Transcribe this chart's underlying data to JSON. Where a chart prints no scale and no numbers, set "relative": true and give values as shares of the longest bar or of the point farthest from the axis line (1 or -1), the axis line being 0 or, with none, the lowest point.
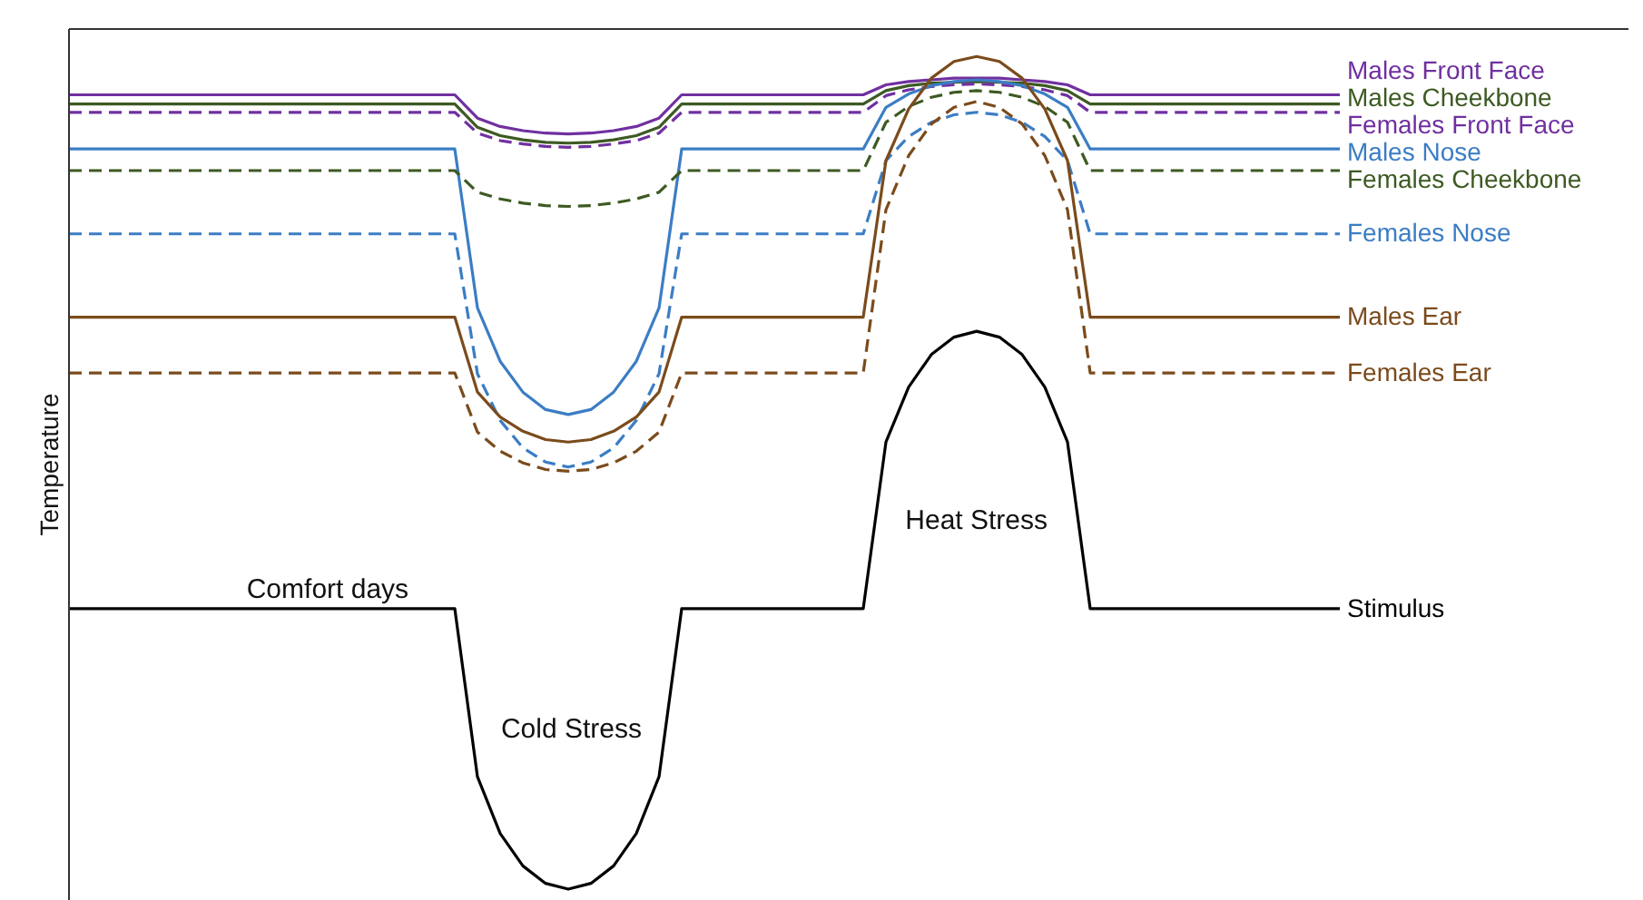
{
  "chart_data": {
    "type": "line",
    "relative": true,
    "ylabel": "Temperature",
    "categories": [
      null,
      null,
      null,
      null,
      null,
      null,
      null,
      null,
      null,
      null,
      null,
      null,
      null,
      null,
      null,
      null,
      null,
      null,
      null,
      null,
      null,
      null,
      null,
      null,
      null,
      null,
      null,
      null,
      null,
      null,
      null,
      null,
      null,
      null,
      null,
      null,
      null,
      null,
      null,
      null,
      null,
      null,
      null,
      null,
      null,
      null,
      null,
      null,
      null,
      null,
      null,
      null,
      null,
      null,
      null,
      null,
      null
    ],
    "annotations": [
      "Comfort days",
      "Cold Stress",
      "Heat Stress"
    ],
    "series": [
      {
        "name": "Males Front Face",
        "color": "#7030a0",
        "line_style": "solid",
        "values": [
          0.954,
          0.954,
          0.954,
          0.954,
          0.954,
          0.954,
          0.954,
          0.954,
          0.954,
          0.954,
          0.954,
          0.954,
          0.954,
          0.954,
          0.954,
          0.954,
          0.954,
          0.954,
          0.926,
          0.916,
          0.911,
          0.908,
          0.907,
          0.908,
          0.911,
          0.916,
          0.926,
          0.954,
          0.954,
          0.954,
          0.954,
          0.954,
          0.954,
          0.954,
          0.954,
          0.954,
          0.966,
          0.97,
          0.972,
          0.974,
          0.974,
          0.974,
          0.972,
          0.97,
          0.966,
          0.954,
          0.954,
          0.954,
          0.954,
          0.954,
          0.954,
          0.954,
          0.954,
          0.954,
          0.954,
          0.954,
          0.954
        ]
      },
      {
        "name": "Males Cheekbone",
        "color": "#3d5a22",
        "line_style": "solid",
        "values": [
          0.943,
          0.943,
          0.943,
          0.943,
          0.943,
          0.943,
          0.943,
          0.943,
          0.943,
          0.943,
          0.943,
          0.943,
          0.943,
          0.943,
          0.943,
          0.943,
          0.943,
          0.943,
          0.915,
          0.905,
          0.9,
          0.897,
          0.896,
          0.897,
          0.9,
          0.905,
          0.915,
          0.943,
          0.943,
          0.943,
          0.943,
          0.943,
          0.943,
          0.943,
          0.943,
          0.943,
          0.959,
          0.965,
          0.968,
          0.969,
          0.97,
          0.969,
          0.968,
          0.965,
          0.959,
          0.943,
          0.943,
          0.943,
          0.943,
          0.943,
          0.943,
          0.943,
          0.943,
          0.943,
          0.943,
          0.943,
          0.943
        ]
      },
      {
        "name": "Females Front Face",
        "color": "#7030a0",
        "line_style": "dashed",
        "values": [
          0.933,
          0.933,
          0.933,
          0.933,
          0.933,
          0.933,
          0.933,
          0.933,
          0.933,
          0.933,
          0.933,
          0.933,
          0.933,
          0.933,
          0.933,
          0.933,
          0.933,
          0.933,
          0.908,
          0.899,
          0.895,
          0.892,
          0.891,
          0.892,
          0.895,
          0.899,
          0.908,
          0.933,
          0.933,
          0.933,
          0.933,
          0.933,
          0.933,
          0.933,
          0.933,
          0.933,
          0.953,
          0.96,
          0.964,
          0.966,
          0.967,
          0.966,
          0.964,
          0.96,
          0.953,
          0.933,
          0.933,
          0.933,
          0.933,
          0.933,
          0.933,
          0.933,
          0.933,
          0.933,
          0.933,
          0.933,
          0.933
        ]
      },
      {
        "name": "Males Nose",
        "color": "#3b7dc4",
        "line_style": "solid",
        "values": [
          0.889,
          0.889,
          0.889,
          0.889,
          0.889,
          0.889,
          0.889,
          0.889,
          0.889,
          0.889,
          0.889,
          0.889,
          0.889,
          0.889,
          0.889,
          0.889,
          0.889,
          0.889,
          0.698,
          0.634,
          0.597,
          0.576,
          0.57,
          0.576,
          0.597,
          0.634,
          0.698,
          0.889,
          0.889,
          0.889,
          0.889,
          0.889,
          0.889,
          0.889,
          0.889,
          0.889,
          0.939,
          0.955,
          0.965,
          0.97,
          0.972,
          0.97,
          0.965,
          0.955,
          0.939,
          0.889,
          0.889,
          0.889,
          0.889,
          0.889,
          0.889,
          0.889,
          0.889,
          0.889,
          0.889,
          0.889,
          0.889
        ]
      },
      {
        "name": "Females Cheekbone",
        "color": "#3d5a22",
        "line_style": "dashed",
        "values": [
          0.863,
          0.863,
          0.863,
          0.863,
          0.863,
          0.863,
          0.863,
          0.863,
          0.863,
          0.863,
          0.863,
          0.863,
          0.863,
          0.863,
          0.863,
          0.863,
          0.863,
          0.863,
          0.837,
          0.829,
          0.824,
          0.821,
          0.82,
          0.821,
          0.824,
          0.829,
          0.837,
          0.863,
          0.863,
          0.863,
          0.863,
          0.863,
          0.863,
          0.863,
          0.863,
          0.863,
          0.921,
          0.94,
          0.951,
          0.957,
          0.959,
          0.957,
          0.951,
          0.94,
          0.921,
          0.863,
          0.863,
          0.863,
          0.863,
          0.863,
          0.863,
          0.863,
          0.863,
          0.863,
          0.863,
          0.863,
          0.863
        ]
      },
      {
        "name": "Females Nose",
        "color": "#3b7dc4",
        "line_style": "dashed",
        "values": [
          0.787,
          0.787,
          0.787,
          0.787,
          0.787,
          0.787,
          0.787,
          0.787,
          0.787,
          0.787,
          0.787,
          0.787,
          0.787,
          0.787,
          0.787,
          0.787,
          0.787,
          0.787,
          0.619,
          0.563,
          0.53,
          0.513,
          0.507,
          0.513,
          0.53,
          0.563,
          0.619,
          0.787,
          0.787,
          0.787,
          0.787,
          0.787,
          0.787,
          0.787,
          0.787,
          0.787,
          0.875,
          0.904,
          0.921,
          0.93,
          0.933,
          0.93,
          0.921,
          0.904,
          0.875,
          0.787,
          0.787,
          0.787,
          0.787,
          0.787,
          0.787,
          0.787,
          0.787,
          0.787,
          0.787,
          0.787,
          0.787
        ]
      },
      {
        "name": "Males Ear",
        "color": "#7b4b1c",
        "line_style": "solid",
        "values": [
          0.687,
          0.687,
          0.687,
          0.687,
          0.687,
          0.687,
          0.687,
          0.687,
          0.687,
          0.687,
          0.687,
          0.687,
          0.687,
          0.687,
          0.687,
          0.687,
          0.687,
          0.687,
          0.597,
          0.567,
          0.55,
          0.54,
          0.537,
          0.54,
          0.55,
          0.567,
          0.597,
          0.687,
          0.687,
          0.687,
          0.687,
          0.687,
          0.687,
          0.687,
          0.687,
          0.687,
          0.875,
          0.937,
          0.974,
          0.994,
          1,
          0.994,
          0.974,
          0.937,
          0.875,
          0.687,
          0.687,
          0.687,
          0.687,
          0.687,
          0.687,
          0.687,
          0.687,
          0.687,
          0.687,
          0.687,
          0.687
        ]
      },
      {
        "name": "Females Ear",
        "color": "#7b4b1c",
        "line_style": "dashed",
        "values": [
          0.62,
          0.62,
          0.62,
          0.62,
          0.62,
          0.62,
          0.62,
          0.62,
          0.62,
          0.62,
          0.62,
          0.62,
          0.62,
          0.62,
          0.62,
          0.62,
          0.62,
          0.62,
          0.549,
          0.526,
          0.512,
          0.504,
          0.502,
          0.504,
          0.512,
          0.526,
          0.549,
          0.62,
          0.62,
          0.62,
          0.62,
          0.62,
          0.62,
          0.62,
          0.62,
          0.62,
          0.816,
          0.881,
          0.919,
          0.939,
          0.946,
          0.939,
          0.919,
          0.881,
          0.816,
          0.62,
          0.62,
          0.62,
          0.62,
          0.62,
          0.62,
          0.62,
          0.62,
          0.62,
          0.62,
          0.62,
          0.62
        ]
      },
      {
        "name": "Stimulus",
        "color": "#000000",
        "line_style": "solid",
        "values": [
          0.337,
          0.337,
          0.337,
          0.337,
          0.337,
          0.337,
          0.337,
          0.337,
          0.337,
          0.337,
          0.337,
          0.337,
          0.337,
          0.337,
          0.337,
          0.337,
          0.337,
          0.337,
          0.135,
          0.067,
          0.028,
          0.007,
          0,
          0.007,
          0.028,
          0.067,
          0.135,
          0.337,
          0.337,
          0.337,
          0.337,
          0.337,
          0.337,
          0.337,
          0.337,
          0.337,
          0.537,
          0.603,
          0.642,
          0.663,
          0.67,
          0.663,
          0.642,
          0.603,
          0.537,
          0.337,
          0.337,
          0.337,
          0.337,
          0.337,
          0.337,
          0.337,
          0.337,
          0.337,
          0.337,
          0.337,
          0.337
        ]
      }
    ]
  }
}
